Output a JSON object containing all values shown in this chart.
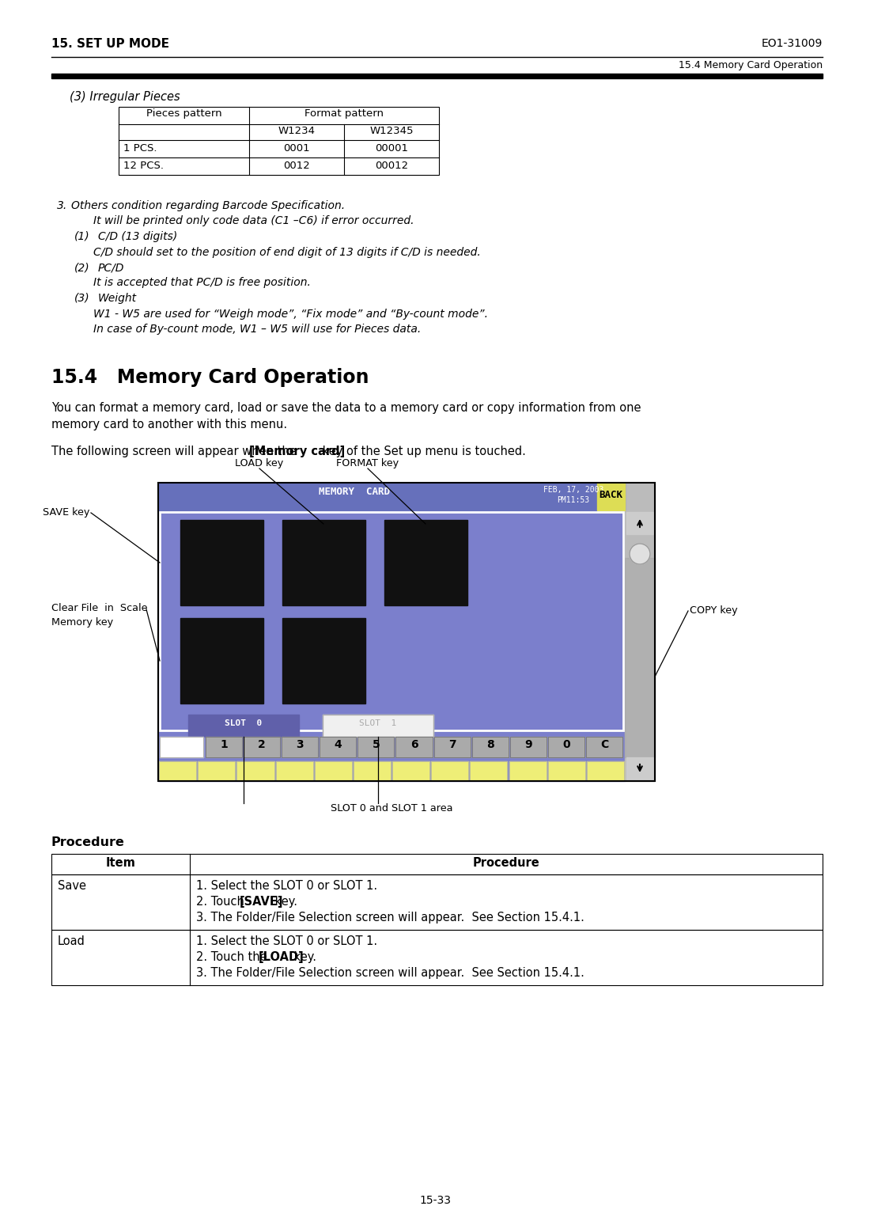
{
  "title_left": "15. SET UP MODE",
  "title_right": "EO1-31009",
  "subtitle_right": "15.4 Memory Card Operation",
  "section_heading": "15.4   Memory Card Operation",
  "page_number": "15-33",
  "irregular_pieces_title": "(3) Irregular Pieces",
  "table1_rows": [
    [
      "1 PCS.",
      "0001",
      "00001"
    ],
    [
      "12 PCS.",
      "0012",
      "00012"
    ]
  ],
  "section3_lines": [
    [
      "3.",
      "  Others condition regarding Barcode Specification.",
      false
    ],
    [
      "",
      "  It will be printed only code data (C1 –C6) if error occurred.",
      false
    ],
    [
      "(1)",
      "  C/D (13 digits)",
      false
    ],
    [
      "",
      "     C/D should set to the position of end digit of 13 digits if C/D is needed.",
      false
    ],
    [
      "(2)",
      "  PC/D",
      false
    ],
    [
      "",
      "     It is accepted that PC/D is free position.",
      false
    ],
    [
      "(3)",
      "  Weight",
      false
    ],
    [
      "",
      "     W1 - W5 are used for “Weigh mode”, “Fix mode” and “By-count mode”.",
      false
    ],
    [
      "",
      "     In case of By-count mode, W1 – W5 will use for Pieces data.",
      false
    ]
  ],
  "para1": "You can format a memory card, load or save the data to a memory card or copy information from one\nmemory card to another with this menu.",
  "para2_pre": "The following screen will appear when the ",
  "para2_bold": "[Memory card]",
  "para2_post": " key of the Set up menu is touched.",
  "label_load": "LOAD key",
  "label_format": "FORMAT key",
  "label_save": "SAVE key",
  "label_clear": "Clear File  in  Scale\nMemory key",
  "label_copy": "COPY key",
  "label_slot_area": "SLOT 0 and SLOT 1 area",
  "screen_title": "MEMORY  CARD",
  "screen_date": "FEB, 17, 2003\nPM11:53",
  "screen_back": "BACK",
  "screen_slot0": "SLOT  0",
  "screen_slot1": "SLOT  1",
  "screen_bg": "#7B7FCC",
  "screen_hdr_bg": "#6670BB",
  "screen_back_bg": "#DDDD55",
  "screen_btn_black": "#111111",
  "screen_slot0_bg": "#6060AA",
  "screen_slot1_bg": "#F0F0F0",
  "screen_scrollbar_bg": "#BBBBBB",
  "screen_scrollbar_dark": "#999999",
  "procedure_title": "Procedure",
  "procedure_headers": [
    "Item",
    "Procedure"
  ],
  "procedure_rows": [
    [
      "Save",
      [
        "1. Select the SLOT 0 or SLOT 1.",
        "2. Touch [SAVE] key.",
        "3. The Folder/File Selection screen will appear.  See Section 15.4.1."
      ]
    ],
    [
      "Load",
      [
        "1. Select the SLOT 0 or SLOT 1.",
        "2. Touch the [LOAD] key.",
        "3. The Folder/File Selection screen will appear.  See Section 15.4.1."
      ]
    ]
  ],
  "procedure_bold_words": [
    "[SAVE]",
    "[LOAD]"
  ],
  "bg_color": "#FFFFFF",
  "text_color": "#000000"
}
